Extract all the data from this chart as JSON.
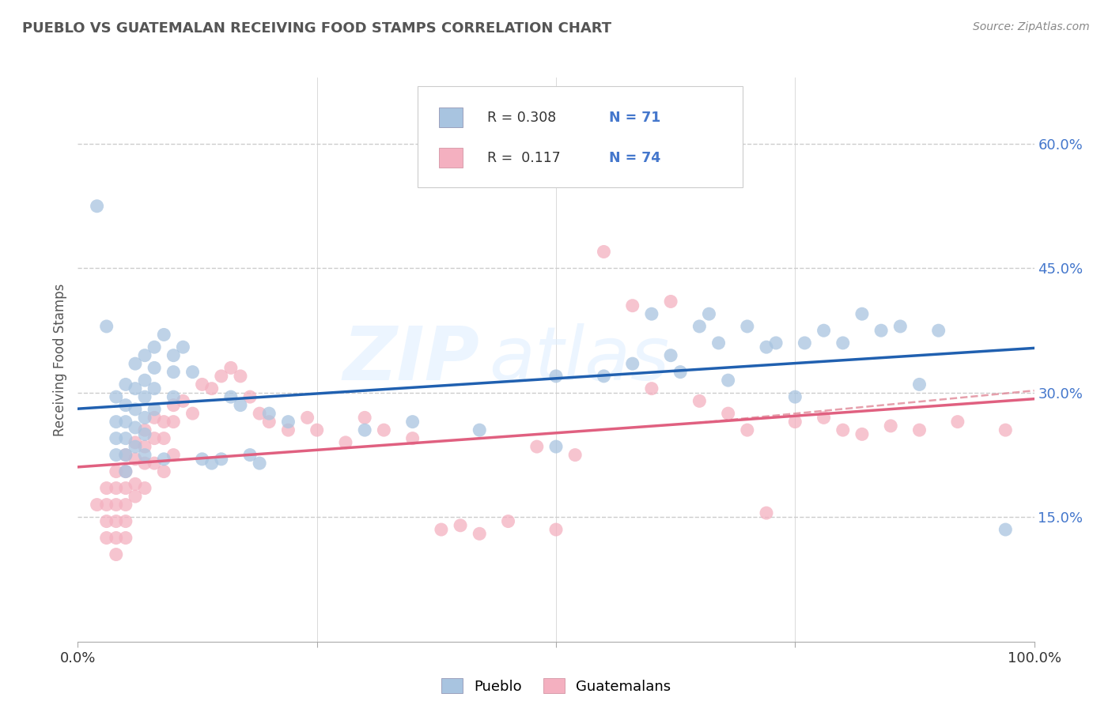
{
  "title": "PUEBLO VS GUATEMALAN RECEIVING FOOD STAMPS CORRELATION CHART",
  "source": "Source: ZipAtlas.com",
  "ylabel": "Receiving Food Stamps",
  "ytick_labels": [
    "15.0%",
    "30.0%",
    "45.0%",
    "60.0%"
  ],
  "ytick_values": [
    0.15,
    0.3,
    0.45,
    0.6
  ],
  "xlim": [
    0.0,
    1.0
  ],
  "ylim": [
    0.0,
    0.68
  ],
  "pueblo_color": "#a8c4e0",
  "guatemalan_color": "#f4b0c0",
  "trend_blue": "#2060b0",
  "trend_pink": "#e06080",
  "trend_dashed_color": "#e08898",
  "background": "#ffffff",
  "watermark_zip": "ZIP",
  "watermark_atlas": "atlas",
  "title_color": "#555555",
  "source_color": "#888888",
  "ytick_color": "#4477cc",
  "xtick_color": "#333333",
  "grid_color": "#cccccc",
  "legend_r_color": "#333333",
  "legend_n_color": "#4477cc",
  "pueblo_points": [
    [
      0.02,
      0.525
    ],
    [
      0.03,
      0.38
    ],
    [
      0.04,
      0.295
    ],
    [
      0.04,
      0.265
    ],
    [
      0.04,
      0.245
    ],
    [
      0.04,
      0.225
    ],
    [
      0.05,
      0.31
    ],
    [
      0.05,
      0.285
    ],
    [
      0.05,
      0.265
    ],
    [
      0.05,
      0.245
    ],
    [
      0.05,
      0.225
    ],
    [
      0.05,
      0.205
    ],
    [
      0.06,
      0.335
    ],
    [
      0.06,
      0.305
    ],
    [
      0.06,
      0.28
    ],
    [
      0.06,
      0.258
    ],
    [
      0.06,
      0.235
    ],
    [
      0.07,
      0.345
    ],
    [
      0.07,
      0.315
    ],
    [
      0.07,
      0.295
    ],
    [
      0.07,
      0.27
    ],
    [
      0.07,
      0.25
    ],
    [
      0.07,
      0.225
    ],
    [
      0.08,
      0.355
    ],
    [
      0.08,
      0.33
    ],
    [
      0.08,
      0.305
    ],
    [
      0.08,
      0.28
    ],
    [
      0.09,
      0.37
    ],
    [
      0.09,
      0.22
    ],
    [
      0.1,
      0.345
    ],
    [
      0.1,
      0.325
    ],
    [
      0.1,
      0.295
    ],
    [
      0.11,
      0.355
    ],
    [
      0.12,
      0.325
    ],
    [
      0.13,
      0.22
    ],
    [
      0.14,
      0.215
    ],
    [
      0.15,
      0.22
    ],
    [
      0.16,
      0.295
    ],
    [
      0.17,
      0.285
    ],
    [
      0.18,
      0.225
    ],
    [
      0.19,
      0.215
    ],
    [
      0.2,
      0.275
    ],
    [
      0.22,
      0.265
    ],
    [
      0.3,
      0.255
    ],
    [
      0.35,
      0.265
    ],
    [
      0.42,
      0.255
    ],
    [
      0.5,
      0.32
    ],
    [
      0.5,
      0.235
    ],
    [
      0.55,
      0.32
    ],
    [
      0.58,
      0.335
    ],
    [
      0.6,
      0.395
    ],
    [
      0.62,
      0.345
    ],
    [
      0.63,
      0.325
    ],
    [
      0.65,
      0.38
    ],
    [
      0.66,
      0.395
    ],
    [
      0.67,
      0.36
    ],
    [
      0.68,
      0.315
    ],
    [
      0.7,
      0.38
    ],
    [
      0.72,
      0.355
    ],
    [
      0.73,
      0.36
    ],
    [
      0.75,
      0.295
    ],
    [
      0.76,
      0.36
    ],
    [
      0.78,
      0.375
    ],
    [
      0.8,
      0.36
    ],
    [
      0.82,
      0.395
    ],
    [
      0.84,
      0.375
    ],
    [
      0.86,
      0.38
    ],
    [
      0.88,
      0.31
    ],
    [
      0.9,
      0.375
    ],
    [
      0.97,
      0.135
    ]
  ],
  "guatemalan_points": [
    [
      0.02,
      0.165
    ],
    [
      0.03,
      0.185
    ],
    [
      0.03,
      0.165
    ],
    [
      0.03,
      0.145
    ],
    [
      0.03,
      0.125
    ],
    [
      0.04,
      0.205
    ],
    [
      0.04,
      0.185
    ],
    [
      0.04,
      0.165
    ],
    [
      0.04,
      0.145
    ],
    [
      0.04,
      0.125
    ],
    [
      0.04,
      0.105
    ],
    [
      0.05,
      0.225
    ],
    [
      0.05,
      0.205
    ],
    [
      0.05,
      0.185
    ],
    [
      0.05,
      0.165
    ],
    [
      0.05,
      0.145
    ],
    [
      0.05,
      0.125
    ],
    [
      0.06,
      0.24
    ],
    [
      0.06,
      0.22
    ],
    [
      0.06,
      0.19
    ],
    [
      0.06,
      0.175
    ],
    [
      0.07,
      0.255
    ],
    [
      0.07,
      0.235
    ],
    [
      0.07,
      0.215
    ],
    [
      0.07,
      0.185
    ],
    [
      0.08,
      0.27
    ],
    [
      0.08,
      0.245
    ],
    [
      0.08,
      0.215
    ],
    [
      0.09,
      0.265
    ],
    [
      0.09,
      0.245
    ],
    [
      0.09,
      0.205
    ],
    [
      0.1,
      0.285
    ],
    [
      0.1,
      0.265
    ],
    [
      0.1,
      0.225
    ],
    [
      0.11,
      0.29
    ],
    [
      0.12,
      0.275
    ],
    [
      0.13,
      0.31
    ],
    [
      0.14,
      0.305
    ],
    [
      0.15,
      0.32
    ],
    [
      0.16,
      0.33
    ],
    [
      0.17,
      0.32
    ],
    [
      0.18,
      0.295
    ],
    [
      0.19,
      0.275
    ],
    [
      0.2,
      0.265
    ],
    [
      0.22,
      0.255
    ],
    [
      0.24,
      0.27
    ],
    [
      0.25,
      0.255
    ],
    [
      0.28,
      0.24
    ],
    [
      0.3,
      0.27
    ],
    [
      0.32,
      0.255
    ],
    [
      0.35,
      0.245
    ],
    [
      0.38,
      0.135
    ],
    [
      0.4,
      0.14
    ],
    [
      0.42,
      0.13
    ],
    [
      0.45,
      0.145
    ],
    [
      0.48,
      0.235
    ],
    [
      0.5,
      0.135
    ],
    [
      0.52,
      0.225
    ],
    [
      0.55,
      0.47
    ],
    [
      0.58,
      0.405
    ],
    [
      0.6,
      0.305
    ],
    [
      0.62,
      0.41
    ],
    [
      0.65,
      0.29
    ],
    [
      0.68,
      0.275
    ],
    [
      0.7,
      0.255
    ],
    [
      0.72,
      0.155
    ],
    [
      0.75,
      0.265
    ],
    [
      0.78,
      0.27
    ],
    [
      0.8,
      0.255
    ],
    [
      0.82,
      0.25
    ],
    [
      0.85,
      0.26
    ],
    [
      0.88,
      0.255
    ],
    [
      0.92,
      0.265
    ],
    [
      0.97,
      0.255
    ]
  ]
}
